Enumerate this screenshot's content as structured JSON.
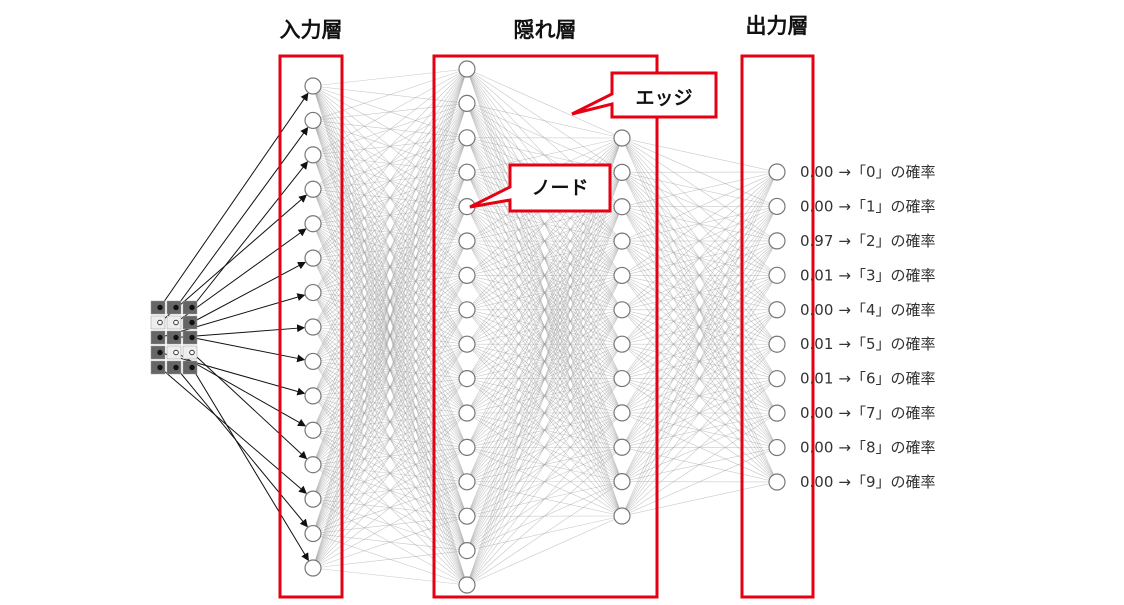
{
  "layers": {
    "input": {
      "title": "入力層",
      "node_count": 15
    },
    "hidden": {
      "title": "隠れ層",
      "node_count_1": 16,
      "node_count_2": 12
    },
    "output": {
      "title": "出力層",
      "node_count": 10
    }
  },
  "callouts": {
    "edge": "エッジ",
    "node": "ノード"
  },
  "input_grid": {
    "rows": 5,
    "cols": 3,
    "cells": [
      1,
      1,
      1,
      0,
      0,
      1,
      1,
      1,
      1,
      1,
      0,
      0,
      1,
      1,
      1
    ]
  },
  "outputs": [
    {
      "value": "0.00",
      "label": "→「0」の確率",
      "active": false
    },
    {
      "value": "0.00",
      "label": "→「1」の確率",
      "active": false
    },
    {
      "value": "0.97",
      "label": "→「2」の確率",
      "active": true
    },
    {
      "value": "0.01",
      "label": "→「3」の確率",
      "active": false
    },
    {
      "value": "0.00",
      "label": "→「4」の確率",
      "active": false
    },
    {
      "value": "0.01",
      "label": "→「5」の確率",
      "active": false
    },
    {
      "value": "0.01",
      "label": "→「6」の確率",
      "active": false
    },
    {
      "value": "0.00",
      "label": "→「7」の確率",
      "active": false
    },
    {
      "value": "0.00",
      "label": "→「8」の確率",
      "active": false
    },
    {
      "value": "0.00",
      "label": "→「9」の確率",
      "active": false
    }
  ],
  "colors": {
    "box": "#e60012",
    "active_node": "#ff0000",
    "grid_dark": "#666666",
    "grid_light": "#eeeeee"
  }
}
